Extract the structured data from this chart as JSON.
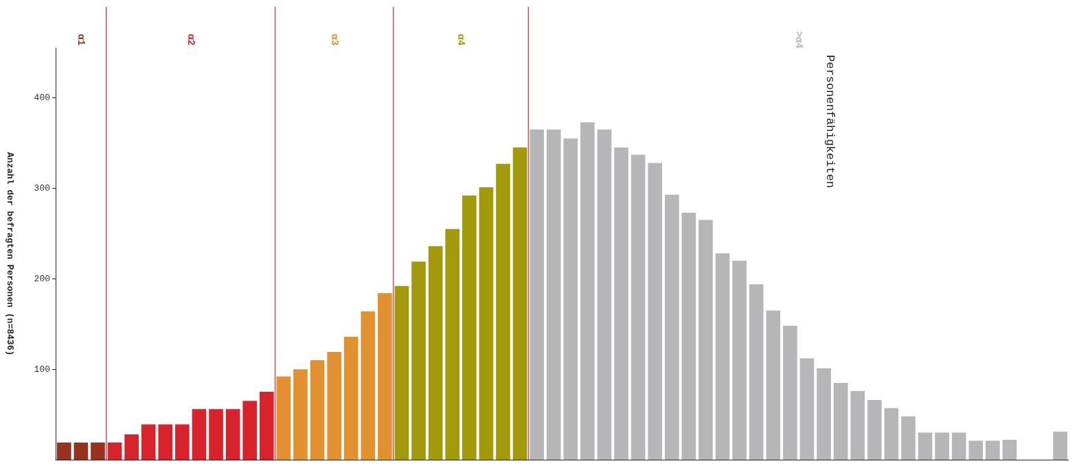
{
  "chart_data": {
    "type": "bar",
    "title": "Personenfähigkeiten",
    "ylabel": "Anzahl der befragten Personen (n=8436)",
    "categories": [
      null,
      null,
      null,
      null,
      null,
      null,
      null,
      null,
      null,
      null,
      null,
      null,
      null,
      null,
      null,
      null,
      null,
      null,
      null,
      null,
      null,
      null,
      null,
      null,
      null,
      null,
      null,
      null,
      null,
      null,
      null,
      null,
      null,
      null,
      null,
      null,
      null,
      null,
      null,
      null,
      null,
      null,
      null,
      null,
      null,
      null,
      null,
      null,
      null,
      null,
      null,
      null,
      null,
      null,
      null,
      null,
      null,
      null,
      null,
      null
    ],
    "series": [
      {
        "name": "α1",
        "color": "#97321f",
        "values": [
          19,
          19,
          19,
          null,
          null,
          null,
          null,
          null,
          null,
          null,
          null,
          null,
          null,
          null,
          null,
          null,
          null,
          null,
          null,
          null,
          null,
          null,
          null,
          null,
          null,
          null,
          null,
          null,
          null,
          null,
          null,
          null,
          null,
          null,
          null,
          null,
          null,
          null,
          null,
          null,
          null,
          null,
          null,
          null,
          null,
          null,
          null,
          null,
          null,
          null,
          null,
          null,
          null,
          null,
          null,
          null,
          null,
          null,
          null,
          null
        ]
      },
      {
        "name": "α2",
        "color": "#d8232c",
        "values": [
          null,
          null,
          null,
          19,
          28,
          39,
          39,
          39,
          56,
          56,
          56,
          65,
          75,
          null,
          null,
          null,
          null,
          null,
          null,
          null,
          null,
          null,
          null,
          null,
          null,
          null,
          null,
          null,
          null,
          null,
          null,
          null,
          null,
          null,
          null,
          null,
          null,
          null,
          null,
          null,
          null,
          null,
          null,
          null,
          null,
          null,
          null,
          null,
          null,
          null,
          null,
          null,
          null,
          null,
          null,
          null,
          null,
          null,
          null,
          null
        ]
      },
      {
        "name": "α3",
        "color": "#e39130",
        "values": [
          null,
          null,
          null,
          null,
          null,
          null,
          null,
          null,
          null,
          null,
          null,
          null,
          null,
          92,
          100,
          110,
          119,
          136,
          164,
          184,
          null,
          null,
          null,
          null,
          null,
          null,
          null,
          null,
          null,
          null,
          null,
          null,
          null,
          null,
          null,
          null,
          null,
          null,
          null,
          null,
          null,
          null,
          null,
          null,
          null,
          null,
          null,
          null,
          null,
          null,
          null,
          null,
          null,
          null,
          null,
          null,
          null,
          null,
          null,
          null
        ]
      },
      {
        "name": "α4",
        "color": "#a29a0b",
        "values": [
          null,
          null,
          null,
          null,
          null,
          null,
          null,
          null,
          null,
          null,
          null,
          null,
          null,
          null,
          null,
          null,
          null,
          null,
          null,
          null,
          192,
          219,
          236,
          255,
          292,
          301,
          327,
          345,
          null,
          null,
          null,
          null,
          null,
          null,
          null,
          null,
          null,
          null,
          null,
          null,
          null,
          null,
          null,
          null,
          null,
          null,
          null,
          null,
          null,
          null,
          null,
          null,
          null,
          null,
          null,
          null,
          null,
          null,
          null,
          null
        ]
      },
      {
        "name": ">α4",
        "color": "#b6b6b8",
        "values": [
          null,
          null,
          null,
          null,
          null,
          null,
          null,
          null,
          null,
          null,
          null,
          null,
          null,
          null,
          null,
          null,
          null,
          null,
          null,
          null,
          null,
          null,
          null,
          null,
          null,
          null,
          null,
          null,
          365,
          365,
          355,
          373,
          365,
          345,
          337,
          328,
          293,
          273,
          265,
          228,
          220,
          194,
          165,
          148,
          112,
          101,
          85,
          76,
          66,
          57,
          48,
          30,
          30,
          30,
          21,
          21,
          22,
          0,
          0,
          31
        ]
      }
    ],
    "ylim": [
      0,
      455
    ],
    "yticks": [
      100,
      200,
      300,
      400
    ],
    "tick_labels": "y",
    "grid": false,
    "legend": false
  }
}
